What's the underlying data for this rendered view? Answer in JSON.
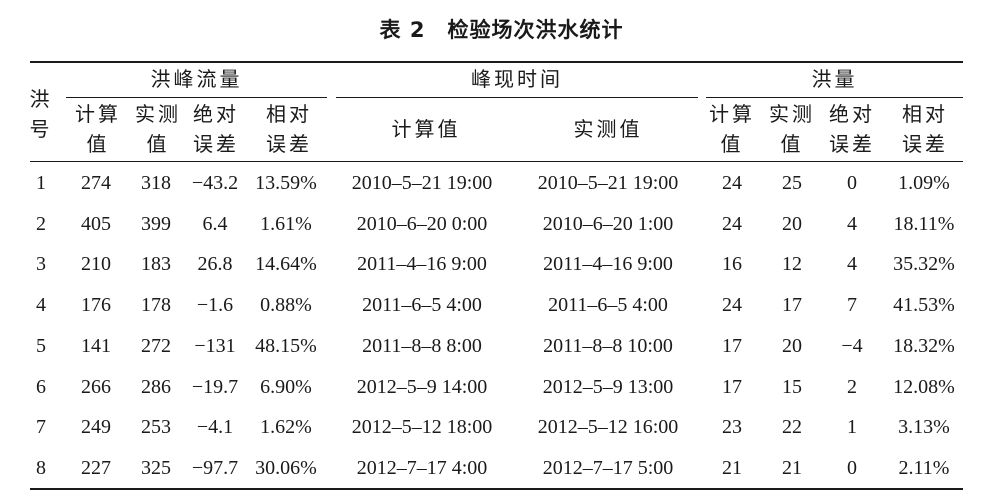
{
  "title": {
    "label": "表 2",
    "text": "检验场次洪水统计"
  },
  "headers": {
    "flood_no": [
      "洪",
      "号"
    ],
    "group_peak_flow": "洪峰流量",
    "group_peak_time": "峰现时间",
    "group_volume": "洪量",
    "calc_value": [
      "计算",
      "值"
    ],
    "measured_value": [
      "实测",
      "值"
    ],
    "abs_error": [
      "绝对",
      "误差"
    ],
    "rel_error": [
      "相对",
      "误差"
    ],
    "time_calc": "计算值",
    "time_measured": "实测值"
  },
  "rows": [
    [
      "1",
      "274",
      "318",
      "−43.2",
      "13.59%",
      "2010–5–21 19:00",
      "2010–5–21 19:00",
      "24",
      "25",
      "0",
      "1.09%"
    ],
    [
      "2",
      "405",
      "399",
      "6.4",
      "1.61%",
      "2010–6–20 0:00",
      "2010–6–20 1:00",
      "24",
      "20",
      "4",
      "18.11%"
    ],
    [
      "3",
      "210",
      "183",
      "26.8",
      "14.64%",
      "2011–4–16 9:00",
      "2011–4–16 9:00",
      "16",
      "12",
      "4",
      "35.32%"
    ],
    [
      "4",
      "176",
      "178",
      "−1.6",
      "0.88%",
      "2011–6–5 4:00",
      "2011–6–5 4:00",
      "24",
      "17",
      "7",
      "41.53%"
    ],
    [
      "5",
      "141",
      "272",
      "−131",
      "48.15%",
      "2011–8–8 8:00",
      "2011–8–8 10:00",
      "17",
      "20",
      "−4",
      "18.32%"
    ],
    [
      "6",
      "266",
      "286",
      "−19.7",
      "6.90%",
      "2012–5–9 14:00",
      "2012–5–9 13:00",
      "17",
      "15",
      "2",
      "12.08%"
    ],
    [
      "7",
      "249",
      "253",
      "−4.1",
      "1.62%",
      "2012–5–12 18:00",
      "2012–5–12 16:00",
      "23",
      "22",
      "1",
      "3.13%"
    ],
    [
      "8",
      "227",
      "325",
      "−97.7",
      "30.06%",
      "2012–7–17 4:00",
      "2012–7–17 5:00",
      "21",
      "21",
      "0",
      "2.11%"
    ]
  ]
}
